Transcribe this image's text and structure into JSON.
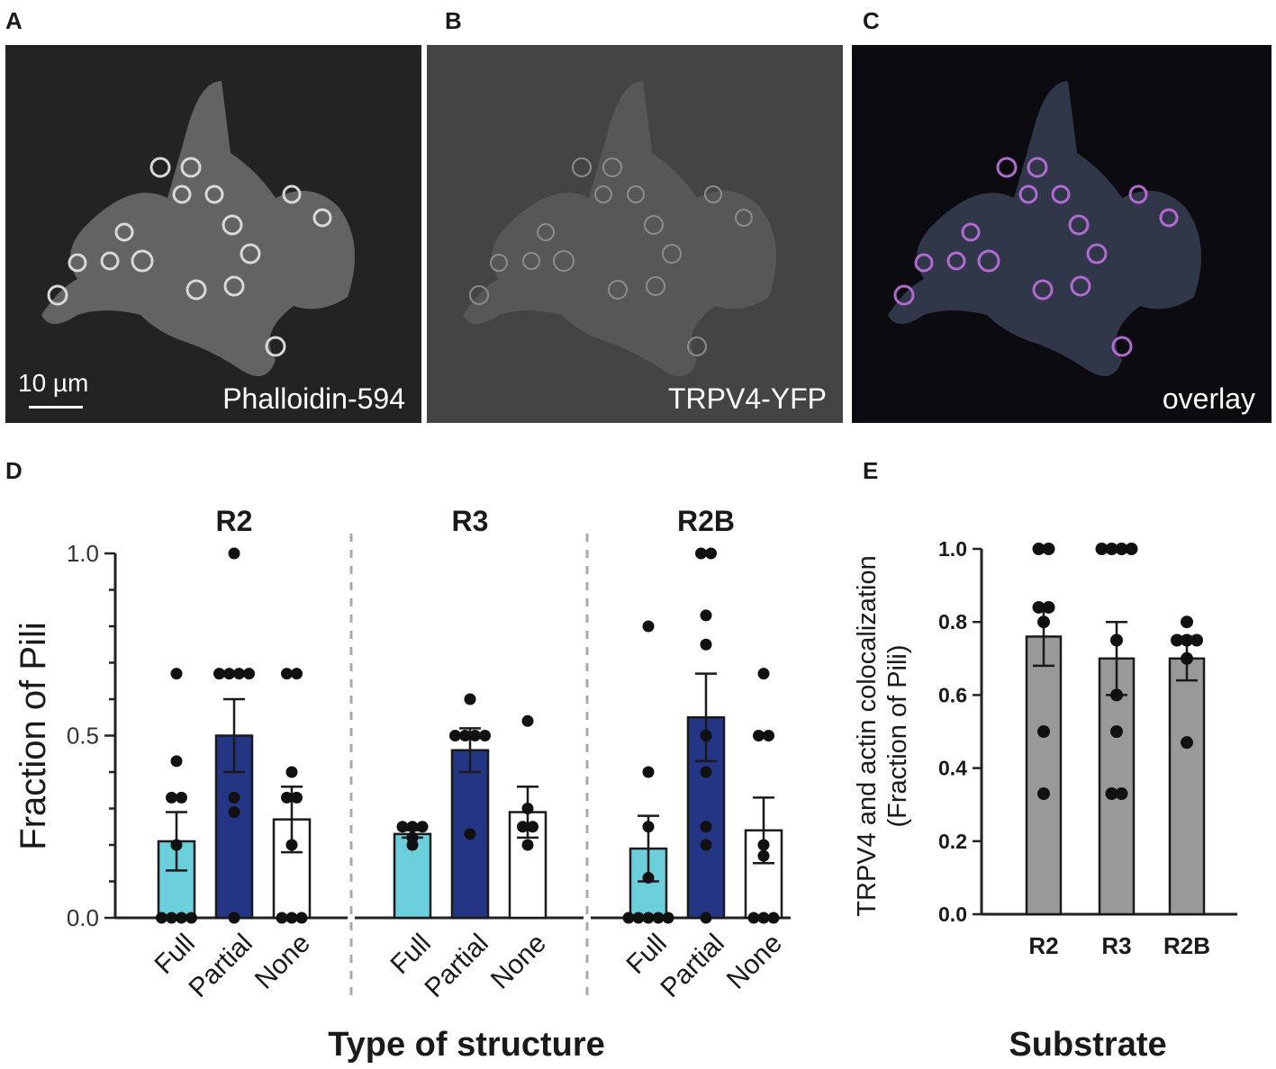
{
  "panels": {
    "A": {
      "letter": "A",
      "label": "Phalloidin-594",
      "scalebar": "10 µm"
    },
    "B": {
      "letter": "B",
      "label": "TRPV4-YFP"
    },
    "C": {
      "letter": "C",
      "label": "overlay"
    },
    "D": {
      "letter": "D"
    },
    "E": {
      "letter": "E"
    }
  },
  "chart_data": [
    {
      "type": "bar",
      "panel": "D",
      "ylabel": "Fraction of Pili",
      "xlabel": "Type of structure",
      "ylim": [
        0,
        1.0
      ],
      "yticks": [
        "0.0",
        "0.5",
        "1.0"
      ],
      "groups": [
        {
          "name": "R2",
          "bars": [
            {
              "category": "Full",
              "mean": 0.21,
              "sem": 0.08,
              "color": "#6ccfdc",
              "points": [
                0.67,
                0.43,
                0.33,
                0.33,
                0.2,
                0.0,
                0.0,
                0.0,
                0.0
              ]
            },
            {
              "category": "Partial",
              "mean": 0.5,
              "sem": 0.1,
              "color": "#243683",
              "points": [
                1.0,
                0.67,
                0.67,
                0.67,
                0.67,
                0.33,
                0.29,
                0.0
              ]
            },
            {
              "category": "None",
              "mean": 0.27,
              "sem": 0.09,
              "color": "#ffffff",
              "points": [
                0.67,
                0.67,
                0.4,
                0.33,
                0.33,
                0.2,
                0.0,
                0.0,
                0.0
              ]
            }
          ]
        },
        {
          "name": "R3",
          "bars": [
            {
              "category": "Full",
              "mean": 0.23,
              "sem": 0.01,
              "color": "#6ccfdc",
              "points": [
                0.25,
                0.25,
                0.25,
                0.22,
                0.2
              ]
            },
            {
              "category": "Partial",
              "mean": 0.46,
              "sem": 0.06,
              "color": "#243683",
              "points": [
                0.6,
                0.5,
                0.5,
                0.5,
                0.5,
                0.23
              ]
            },
            {
              "category": "None",
              "mean": 0.29,
              "sem": 0.07,
              "color": "#ffffff",
              "points": [
                0.54,
                0.3,
                0.25,
                0.25,
                0.2
              ]
            }
          ]
        },
        {
          "name": "R2B",
          "bars": [
            {
              "category": "Full",
              "mean": 0.19,
              "sem": 0.09,
              "color": "#6ccfdc",
              "points": [
                0.8,
                0.4,
                0.25,
                0.11,
                0.0,
                0.0,
                0.0,
                0.0,
                0.0
              ]
            },
            {
              "category": "Partial",
              "mean": 0.55,
              "sem": 0.12,
              "color": "#243683",
              "points": [
                1.0,
                1.0,
                0.83,
                0.75,
                0.5,
                0.4,
                0.25,
                0.2,
                0.0
              ]
            },
            {
              "category": "None",
              "mean": 0.24,
              "sem": 0.09,
              "color": "#ffffff",
              "points": [
                0.67,
                0.5,
                0.5,
                0.2,
                0.17,
                0.0,
                0.0,
                0.0
              ]
            }
          ]
        }
      ]
    },
    {
      "type": "bar",
      "panel": "E",
      "ylabel_line1": "TRPV4 and actin colocalization",
      "ylabel_line2": "(Fraction of Pili)",
      "xlabel": "Substrate",
      "ylim": [
        0,
        1.0
      ],
      "yticks": [
        "0.0",
        "0.2",
        "0.4",
        "0.6",
        "0.8",
        "1.0"
      ],
      "categories": [
        "R2",
        "R3",
        "R2B"
      ],
      "color": "#999999",
      "means": [
        0.76,
        0.7,
        0.7
      ],
      "sems": [
        0.08,
        0.1,
        0.06
      ],
      "points": [
        [
          1.0,
          1.0,
          0.84,
          0.84,
          0.8,
          0.5,
          0.33
        ],
        [
          1.0,
          1.0,
          1.0,
          1.0,
          0.75,
          0.6,
          0.5,
          0.33,
          0.33
        ],
        [
          0.8,
          0.75,
          0.75,
          0.75,
          0.7,
          0.47
        ]
      ]
    }
  ]
}
